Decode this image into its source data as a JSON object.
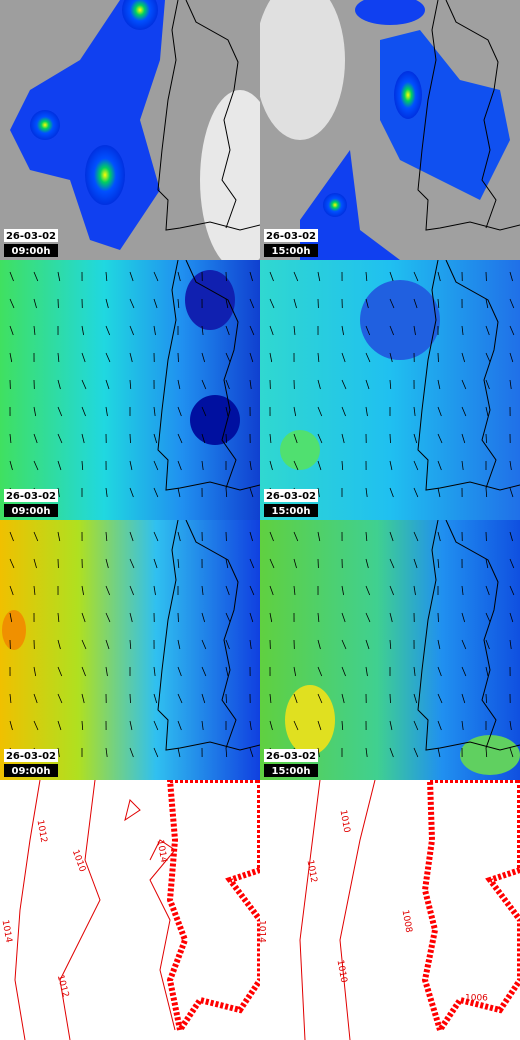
{
  "panels": [
    {
      "date": "26-03-02",
      "time": "09:00h"
    },
    {
      "date": "26-03-02",
      "time": "15:00h"
    },
    {
      "date": "26-03-02",
      "time": "09:00h"
    },
    {
      "date": "26-03-02",
      "time": "15:00h"
    },
    {
      "date": "26-03-02",
      "time": "09:00h"
    },
    {
      "date": "26-03-02",
      "time": "15:00h"
    }
  ],
  "isobars": {
    "left": [
      "1012",
      "1010",
      "1014",
      "1014",
      "1012"
    ],
    "right": [
      "1010",
      "1012",
      "1010",
      "1014",
      "1008",
      "1006"
    ]
  }
}
